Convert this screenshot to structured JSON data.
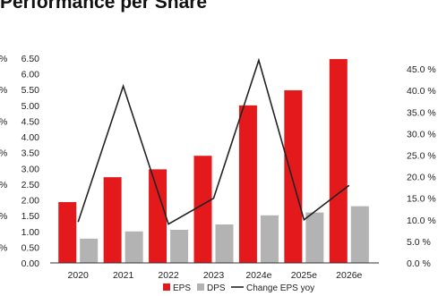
{
  "chart_data": {
    "type": "bar",
    "title": "Performance per Share",
    "categories": [
      "2020",
      "2021",
      "2022",
      "2023",
      "2024e",
      "2025e",
      "2026e"
    ],
    "series": [
      {
        "name": "EPS",
        "type": "bar",
        "axis": "left",
        "values": [
          1.93,
          2.72,
          2.97,
          3.4,
          5.0,
          5.48,
          6.47
        ]
      },
      {
        "name": "DPS",
        "type": "bar",
        "axis": "left",
        "values": [
          0.77,
          1.0,
          1.05,
          1.22,
          1.51,
          1.6,
          1.8
        ]
      },
      {
        "name": "Change EPS yoy",
        "type": "line",
        "axis": "right",
        "values": [
          9.5,
          41.0,
          9.0,
          15.0,
          47.0,
          10.0,
          18.0
        ]
      }
    ],
    "left_axis": {
      "ylim": [
        0,
        6.5
      ],
      "ticks": [
        "0.00",
        "0.50",
        "1.00",
        "1.50",
        "2.00",
        "2.50",
        "3.00",
        "3.50",
        "4.00",
        "4.50",
        "5.00",
        "5.50",
        "6.00",
        "6.50"
      ]
    },
    "right_axis": {
      "ylim": [
        0,
        47.5
      ],
      "ticks": [
        "0.0 %",
        "5.0 %",
        "10.0 %",
        "15.0 %",
        "20.0 %",
        "25.0 %",
        "30.0 %",
        "35.0 %",
        "40.0 %",
        "45.0 %"
      ]
    },
    "legend": {
      "position": "bottom-center"
    },
    "colors": {
      "EPS": "#e3191c",
      "DPS": "#b3b3b3",
      "Change EPS yoy": "#222222"
    },
    "grid": false
  }
}
